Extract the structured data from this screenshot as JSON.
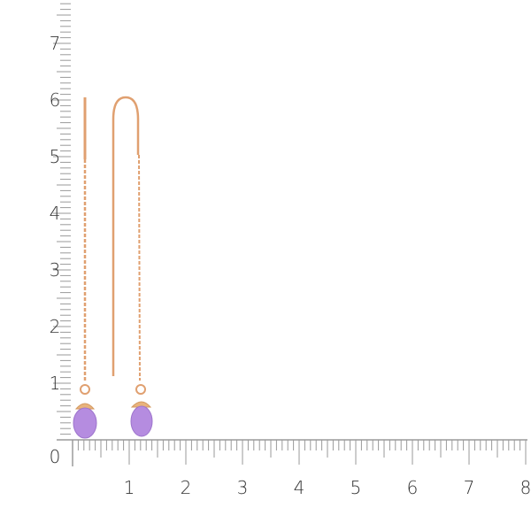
{
  "ruler": {
    "zero_label": "0",
    "x_labels": [
      "1",
      "2",
      "3",
      "4",
      "5",
      "6",
      "7",
      "8"
    ],
    "y_labels": [
      "1",
      "2",
      "3",
      "4",
      "5",
      "6",
      "7"
    ],
    "tick_color": "#9a9a9a"
  },
  "product": {
    "metal_color": "#e0a070",
    "gem_color": "#b58ce0",
    "gem_dark": "#8f66c4"
  }
}
